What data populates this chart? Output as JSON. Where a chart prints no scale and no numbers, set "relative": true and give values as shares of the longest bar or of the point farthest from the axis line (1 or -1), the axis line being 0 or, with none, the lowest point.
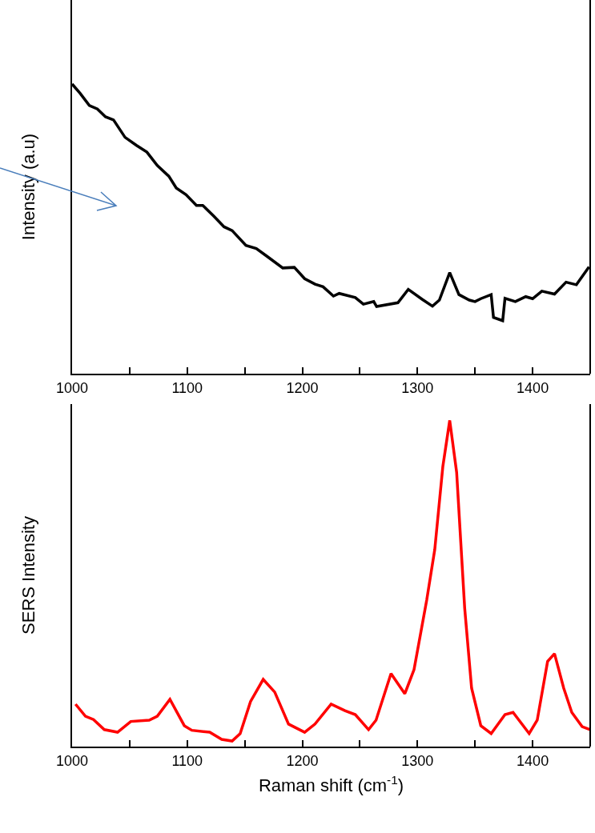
{
  "chart_data": [
    {
      "type": "line",
      "ylabel": "Intensity (a.u)",
      "relative": true,
      "tick_labels": "x",
      "marker": "none",
      "line_style": "solid",
      "xlim": [
        1000,
        1450
      ],
      "xticks": [
        1000,
        {
          "value": 1050,
          "label": null
        },
        1100,
        {
          "value": 1150,
          "label": null
        },
        1200,
        {
          "value": 1250,
          "label": null
        },
        1300,
        {
          "value": 1350,
          "label": null
        },
        1400,
        {
          "value": 1450,
          "label": null
        }
      ],
      "x": [
        1000,
        1007,
        1015,
        1022,
        1029,
        1036,
        1046,
        1056,
        1065,
        1074,
        1084,
        1090.5,
        1099,
        1108,
        1113.5,
        1123,
        1132,
        1139,
        1151,
        1160,
        1169,
        1183,
        1193,
        1202,
        1211,
        1218,
        1227,
        1232,
        1246,
        1253,
        1262,
        1264.5,
        1283,
        1292,
        1304,
        1313,
        1319,
        1328,
        1336,
        1345,
        1350,
        1355,
        1364,
        1366,
        1374,
        1376,
        1385,
        1394,
        1400,
        1408,
        1419,
        1429,
        1438,
        1449
      ],
      "series": [
        {
          "color": "#000000",
          "values": [
            1,
            0.968,
            0.926,
            0.914,
            0.887,
            0.876,
            0.816,
            0.788,
            0.765,
            0.719,
            0.682,
            0.641,
            0.618,
            0.581,
            0.581,
            0.544,
            0.507,
            0.494,
            0.443,
            0.432,
            0.406,
            0.365,
            0.367,
            0.328,
            0.309,
            0.3,
            0.268,
            0.277,
            0.263,
            0.24,
            0.249,
            0.232,
            0.245,
            0.291,
            0.257,
            0.233,
            0.254,
            0.349,
            0.273,
            0.254,
            0.249,
            0.259,
            0.273,
            0.194,
            0.183,
            0.26,
            0.249,
            0.266,
            0.259,
            0.285,
            0.275,
            0.316,
            0.307,
            0.369
          ]
        }
      ]
    },
    {
      "type": "line",
      "xlabel": "Raman shift (cm$^{-1}$)",
      "ylabel": "SERS Intensity",
      "relative": true,
      "tick_labels": "x",
      "marker": "none",
      "line_style": "solid",
      "xlim": [
        1000,
        1450
      ],
      "xticks": [
        1000,
        {
          "value": 1050,
          "label": null
        },
        1100,
        {
          "value": 1150,
          "label": null
        },
        1200,
        {
          "value": 1250,
          "label": null
        },
        1300,
        {
          "value": 1350,
          "label": null
        },
        1400,
        {
          "value": 1450,
          "label": null
        }
      ],
      "x": [
        1003,
        1011.6,
        1018.6,
        1028,
        1039.5,
        1051,
        1067,
        1074,
        1085,
        1097.5,
        1104,
        1119.5,
        1130,
        1139,
        1146,
        1155,
        1166,
        1176,
        1188,
        1202,
        1211,
        1225,
        1237,
        1246,
        1257.5,
        1264,
        1277,
        1289,
        1297,
        1308,
        1315,
        1322,
        1328,
        1334,
        1341,
        1347,
        1355,
        1364,
        1376,
        1383,
        1397,
        1404,
        1413,
        1419,
        1427,
        1434,
        1443,
        1450
      ],
      "series": [
        {
          "color": "#ff0000",
          "values": [
            0.13,
            0.093,
            0.083,
            0.052,
            0.044,
            0.077,
            0.081,
            0.093,
            0.145,
            0.064,
            0.05,
            0.044,
            0.022,
            0.017,
            0.04,
            0.138,
            0.206,
            0.167,
            0.069,
            0.044,
            0.069,
            0.13,
            0.11,
            0.098,
            0.052,
            0.081,
            0.224,
            0.162,
            0.236,
            0.449,
            0.604,
            0.858,
            1,
            0.841,
            0.424,
            0.179,
            0.064,
            0.04,
            0.098,
            0.105,
            0.04,
            0.081,
            0.261,
            0.285,
            0.179,
            0.105,
            0.061,
            0.052
          ]
        }
      ]
    }
  ]
}
